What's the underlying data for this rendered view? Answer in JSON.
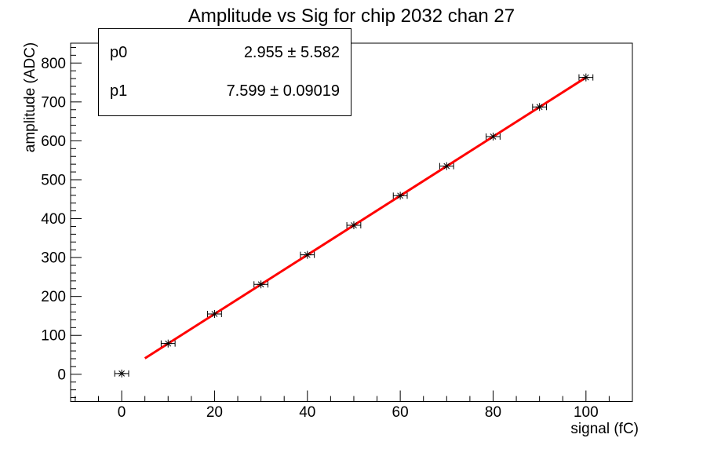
{
  "title": "Amplitude vs Sig for chip 2032 chan 27",
  "stats_box": {
    "rows": [
      {
        "label": "p0",
        "value": "2.955 ± 5.582"
      },
      {
        "label": "p1",
        "value": "7.599 ± 0.09019"
      }
    ]
  },
  "axes": {
    "x": {
      "title": "signal (fC)",
      "min": -11,
      "max": 110,
      "major_ticks": [
        0,
        20,
        40,
        60,
        80,
        100
      ],
      "minor_step": 5
    },
    "y": {
      "title": "amplitude (ADC)",
      "min": -70,
      "max": 851,
      "major_ticks": [
        0,
        100,
        200,
        300,
        400,
        500,
        600,
        700,
        800
      ],
      "minor_step": 20
    }
  },
  "chart_data": {
    "type": "scatter",
    "title": "Amplitude vs Sig for chip 2032 chan 27",
    "xlabel": "signal (fC)",
    "ylabel": "amplitude (ADC)",
    "x": [
      0,
      10,
      20,
      30,
      40,
      50,
      60,
      70,
      80,
      90,
      100
    ],
    "y": [
      2,
      79,
      155,
      231,
      307,
      383,
      459,
      535,
      611,
      687,
      763
    ],
    "x_err": 1.5,
    "marker": "asterisk",
    "marker_color": "#000000",
    "xlim": [
      -11,
      110
    ],
    "ylim": [
      -70,
      851
    ],
    "grid": false,
    "fit": {
      "model": "p0 + p1*x",
      "p0": 2.955,
      "p0_err": 5.582,
      "p1": 7.599,
      "p1_err": 0.09019,
      "x_range": [
        5,
        100
      ],
      "color": "#ff0000",
      "line_width": 3
    },
    "stats_position": "top-left"
  },
  "colors": {
    "background": "#ffffff",
    "frame": "#000000",
    "fit_line": "#ff0000",
    "marker": "#000000",
    "text": "#000000"
  }
}
